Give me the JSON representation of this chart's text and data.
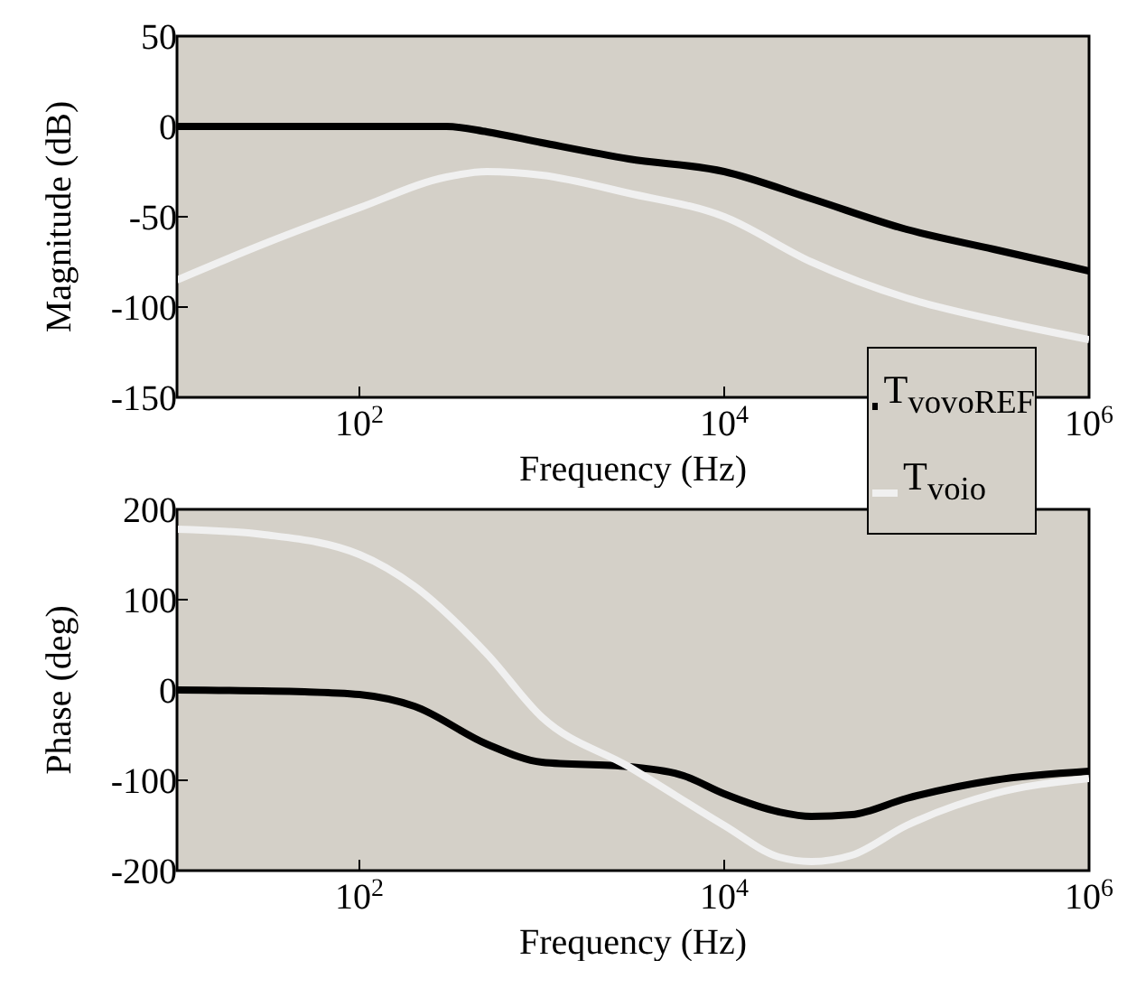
{
  "chart_data": [
    {
      "type": "line",
      "xlabel": "Frequency (Hz)",
      "ylabel": "Magnitude (dB)",
      "log": "x",
      "legend": "bottom right",
      "line_style": "solid",
      "marker": "none",
      "xlim": [
        10,
        1000000
      ],
      "xticks": [
        {
          "value": 100,
          "label": "10$^{2}$"
        },
        {
          "value": 10000,
          "label": "10$^{4}$"
        },
        {
          "value": 1000000,
          "label": "10$^{6}$"
        }
      ],
      "ylim": [
        -150,
        50
      ],
      "yticks": [
        -150,
        -100,
        -50,
        0,
        50
      ],
      "series": [
        {
          "name": "T$_{vovoREF}$",
          "color": "#000000",
          "x": [
            10,
            100,
            300,
            500,
            1000,
            3000,
            10000,
            30000,
            100000,
            300000,
            1000000
          ],
          "values": [
            0,
            0,
            0,
            -3,
            -9,
            -18,
            -25,
            -40,
            -57,
            -68,
            -80
          ]
        },
        {
          "name": "T$_{voio}$",
          "color": "#f0f0f0",
          "x": [
            10,
            30,
            100,
            300,
            500,
            1000,
            3000,
            10000,
            30000,
            100000,
            300000,
            1000000
          ],
          "values": [
            -85,
            -65,
            -45,
            -28,
            -25,
            -27,
            -37,
            -50,
            -75,
            -95,
            -107,
            -118
          ]
        }
      ]
    },
    {
      "type": "line",
      "xlabel": "Frequency (Hz)",
      "ylabel": "Phase (deg)",
      "log": "x",
      "line_style": "solid",
      "marker": "none",
      "xlim": [
        10,
        1000000
      ],
      "xticks": [
        {
          "value": 100,
          "label": "10$^{2}$"
        },
        {
          "value": 10000,
          "label": "10$^{4}$"
        },
        {
          "value": 1000000,
          "label": "10$^{6}$"
        }
      ],
      "ylim": [
        -200,
        200
      ],
      "yticks": [
        -200,
        -100,
        0,
        100,
        200
      ],
      "series": [
        {
          "color": "#000000",
          "x": [
            10,
            50,
            100,
            200,
            500,
            1000,
            3000,
            6000,
            10000,
            20000,
            30000,
            50000,
            100000,
            300000,
            1000000
          ],
          "values": [
            0,
            -2,
            -5,
            -18,
            -60,
            -80,
            -85,
            -95,
            -115,
            -135,
            -140,
            -138,
            -120,
            -100,
            -90
          ]
        },
        {
          "color": "#f0f0f0",
          "x": [
            10,
            30,
            100,
            200,
            500,
            1000,
            3000,
            10000,
            20000,
            30000,
            50000,
            100000,
            300000,
            1000000
          ],
          "values": [
            178,
            172,
            150,
            115,
            40,
            -30,
            -85,
            -150,
            -185,
            -190,
            -183,
            -150,
            -115,
            -98
          ]
        }
      ]
    }
  ]
}
